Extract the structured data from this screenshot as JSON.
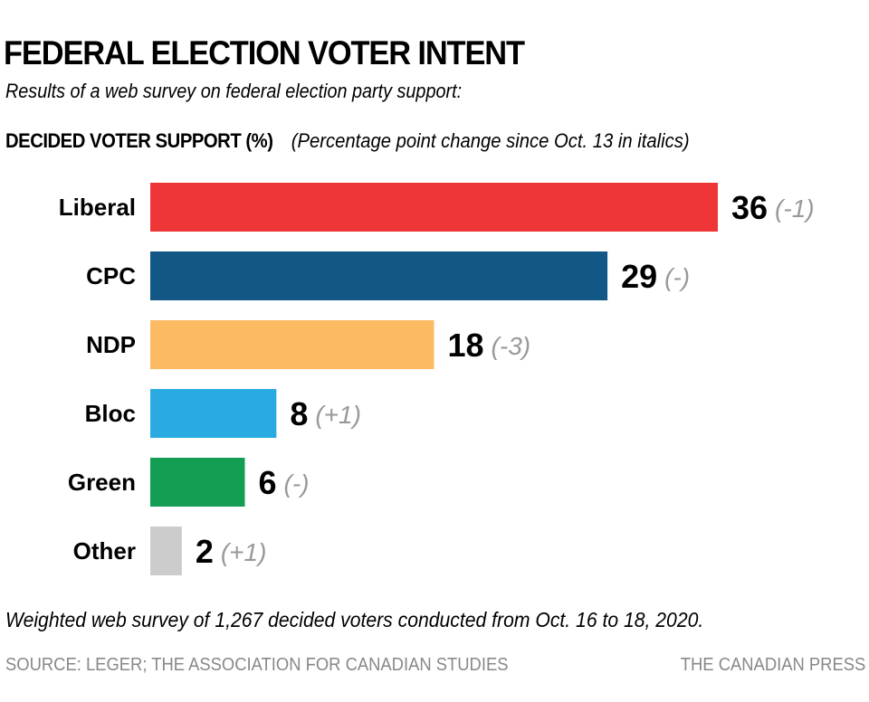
{
  "header": {
    "title": "FEDERAL ELECTION VOTER INTENT",
    "subtitle": "Results of a web survey on federal election party support:",
    "section_label": "DECIDED VOTER SUPPORT (%)",
    "section_note": "(Percentage point change since Oct. 13 in italics)"
  },
  "footer": {
    "note": "Weighted web survey of 1,267 decided voters conducted from Oct. 16 to 18, 2020.",
    "source": "SOURCE: LEGER; THE ASSOCIATION FOR CANADIAN STUDIES",
    "credit": "THE CANADIAN PRESS"
  },
  "chart_data": {
    "type": "bar",
    "orientation": "horizontal",
    "title": "DECIDED VOTER SUPPORT (%)",
    "xlabel": "",
    "ylabel": "",
    "xlim": [
      0,
      36
    ],
    "grid": false,
    "categories": [
      "Liberal",
      "CPC",
      "NDP",
      "Bloc",
      "Green",
      "Other"
    ],
    "values": [
      36,
      29,
      18,
      8,
      6,
      2
    ],
    "changes": [
      "(-1)",
      "(-)",
      "(-3)",
      "(+1)",
      "(-)",
      "(+1)"
    ],
    "colors": [
      "#ee3537",
      "#125786",
      "#fcba63",
      "#29abe2",
      "#139e54",
      "#cccccc"
    ],
    "label_color": "#000000",
    "change_color": "#999999"
  }
}
